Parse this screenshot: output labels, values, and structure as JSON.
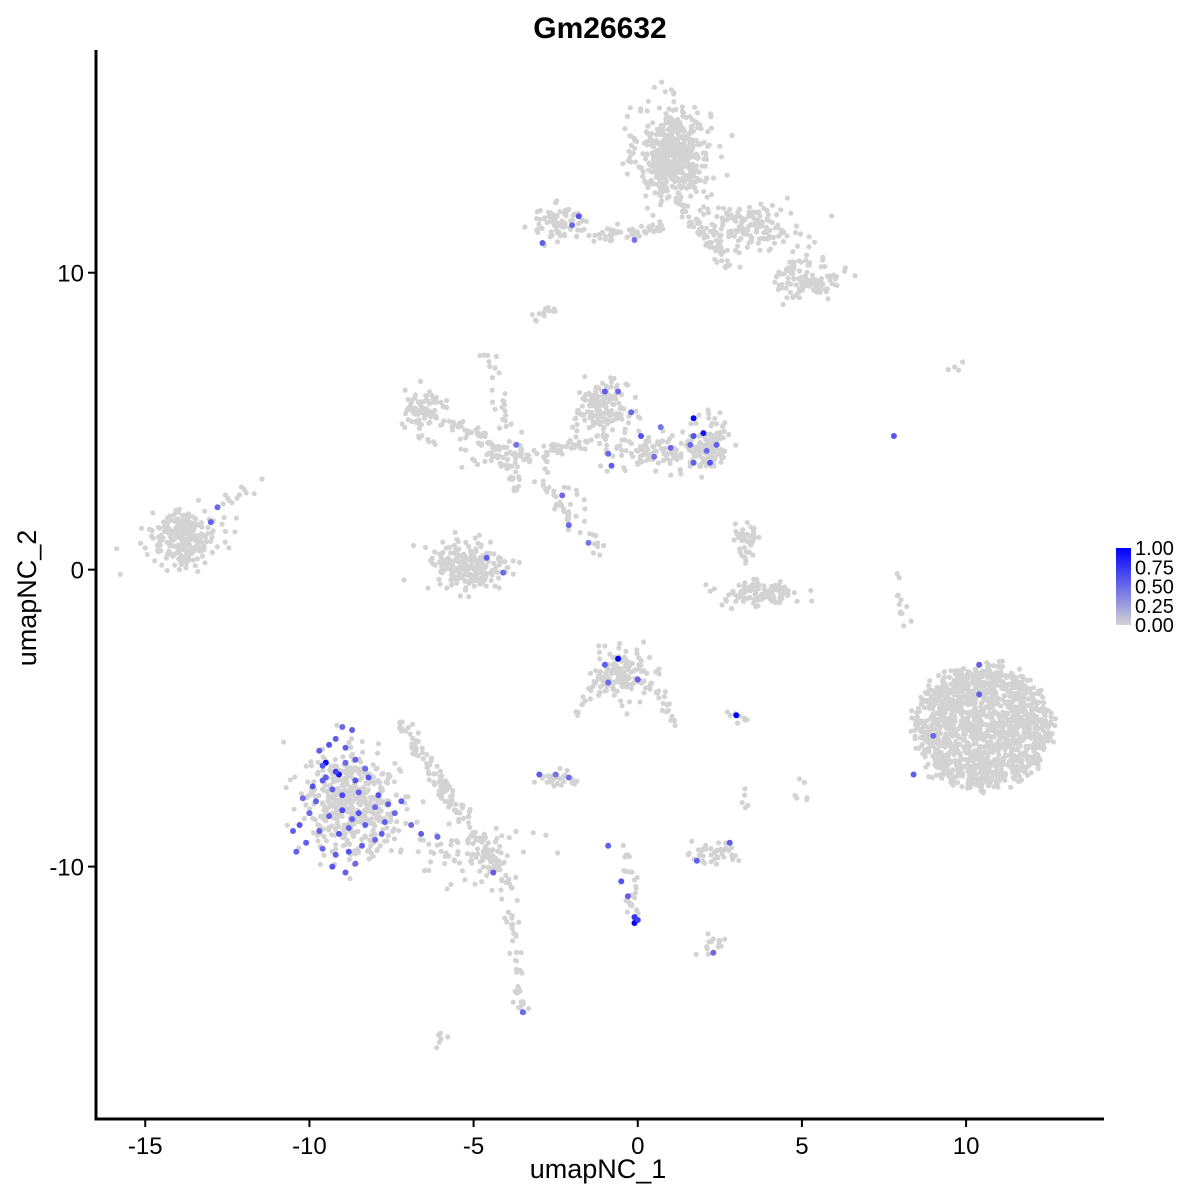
{
  "chart_data": {
    "type": "scatter",
    "title": "Gm26632",
    "xlabel": "umapNC_1",
    "ylabel": "umapNC_2",
    "xlim": [
      -16.5,
      14.2
    ],
    "ylim": [
      -18.5,
      17.5
    ],
    "xticks": [
      -15,
      -10,
      -5,
      0,
      5,
      10
    ],
    "yticks": [
      -10,
      0,
      10
    ],
    "xtick_labels": [
      "-15",
      "-10",
      "-5",
      "0",
      "5",
      "10"
    ],
    "ytick_labels": [
      "-10",
      "0",
      "10"
    ],
    "color_scale": {
      "low": "#d3d3d3",
      "high": "#0000ff",
      "range": [
        0,
        1
      ],
      "ticks": [
        "1.00",
        "0.75",
        "0.50",
        "0.25",
        "0.00"
      ],
      "tick_values": [
        1.0,
        0.75,
        0.5,
        0.25,
        0.0
      ],
      "legend_position": "right"
    },
    "clusters": [
      {
        "center": [
          1.1,
          14.0
        ],
        "sd": [
          0.55,
          0.8
        ],
        "n": 520,
        "shape": "ellipse"
      },
      {
        "center": [
          3.3,
          11.5
        ],
        "sd": [
          0.9,
          0.4
        ],
        "n": 160,
        "shape": "ellipse"
      },
      {
        "center": [
          5.2,
          9.8
        ],
        "sd": [
          0.5,
          0.35
        ],
        "n": 110,
        "shape": "ellipse"
      },
      {
        "center": [
          -2.4,
          11.7
        ],
        "sd": [
          0.45,
          0.28
        ],
        "n": 80,
        "shape": "ellipse"
      },
      {
        "center": [
          -0.8,
          11.3
        ],
        "sd": [
          0.5,
          0.12
        ],
        "n": 30,
        "shape": "ellipse"
      },
      {
        "center": [
          -1.1,
          5.4
        ],
        "sd": [
          0.4,
          0.45
        ],
        "n": 160,
        "shape": "ellipse"
      },
      {
        "center": [
          0.6,
          4.0
        ],
        "sd": [
          0.7,
          0.3
        ],
        "n": 110,
        "shape": "ellipse"
      },
      {
        "center": [
          2.2,
          4.2
        ],
        "sd": [
          0.3,
          0.45
        ],
        "n": 110,
        "shape": "ellipse"
      },
      {
        "center": [
          -6.5,
          5.4
        ],
        "sd": [
          0.35,
          0.3
        ],
        "n": 70,
        "shape": "ellipse"
      },
      {
        "center": [
          -4.0,
          3.8
        ],
        "sd": [
          0.7,
          0.25
        ],
        "n": 60,
        "shape": "ellipse"
      },
      {
        "center": [
          -13.8,
          1.1
        ],
        "sd": [
          0.5,
          0.45
        ],
        "n": 230,
        "shape": "ellipse"
      },
      {
        "center": [
          -5.2,
          0.1
        ],
        "sd": [
          0.6,
          0.45
        ],
        "n": 220,
        "shape": "ellipse"
      },
      {
        "center": [
          3.3,
          0.9
        ],
        "sd": [
          0.25,
          0.4
        ],
        "n": 40,
        "shape": "ellipse"
      },
      {
        "center": [
          3.7,
          -0.8
        ],
        "sd": [
          0.6,
          0.22
        ],
        "n": 100,
        "shape": "ellipse"
      },
      {
        "center": [
          10.5,
          -5.3
        ],
        "sd": [
          1.0,
          1.0
        ],
        "n": 1400,
        "shape": "disc",
        "radius": [
          2.1,
          2.05
        ]
      },
      {
        "center": [
          -0.5,
          -3.5
        ],
        "sd": [
          0.45,
          0.4
        ],
        "n": 140,
        "shape": "ellipse"
      },
      {
        "center": [
          -8.7,
          -7.9
        ],
        "sd": [
          0.7,
          0.85
        ],
        "n": 450,
        "shape": "ellipse"
      },
      {
        "center": [
          -5.0,
          -9.6
        ],
        "sd": [
          0.9,
          0.5
        ],
        "n": 90,
        "shape": "ellipse"
      },
      {
        "center": [
          -2.4,
          -7.0
        ],
        "sd": [
          0.3,
          0.18
        ],
        "n": 30,
        "shape": "ellipse"
      },
      {
        "center": [
          2.4,
          -9.6
        ],
        "sd": [
          0.4,
          0.18
        ],
        "n": 40,
        "shape": "ellipse"
      },
      {
        "center": [
          2.3,
          -12.6
        ],
        "sd": [
          0.2,
          0.15
        ],
        "n": 14,
        "shape": "ellipse"
      }
    ],
    "streams": [
      {
        "from": [
          -0.3,
          11.2
        ],
        "to": [
          0.8,
          11.6
        ],
        "n": 30
      },
      {
        "from": [
          1.2,
          12.5
        ],
        "to": [
          2.8,
          10.2
        ],
        "n": 40
      },
      {
        "from": [
          -3.2,
          8.3
        ],
        "to": [
          -2.6,
          8.9
        ],
        "n": 12
      },
      {
        "from": [
          -4.5,
          7.5
        ],
        "to": [
          -3.6,
          2.5
        ],
        "n": 40
      },
      {
        "from": [
          -5.8,
          5.0
        ],
        "to": [
          -4.2,
          4.1
        ],
        "n": 40
      },
      {
        "from": [
          -3.0,
          3.9
        ],
        "to": [
          -1.0,
          4.5
        ],
        "n": 40
      },
      {
        "from": [
          -3.0,
          3.2
        ],
        "to": [
          -1.6,
          1.0
        ],
        "n": 25
      },
      {
        "from": [
          -2.2,
          3.0
        ],
        "to": [
          -1.2,
          0.6
        ],
        "n": 20
      },
      {
        "from": [
          -12.6,
          2.3
        ],
        "to": [
          -11.4,
          3.0
        ],
        "n": 12
      },
      {
        "from": [
          -7.0,
          5.5
        ],
        "to": [
          -6.2,
          4.2
        ],
        "n": 15
      },
      {
        "from": [
          -7.2,
          -5.2
        ],
        "to": [
          -4.2,
          -10.2
        ],
        "n": 130
      },
      {
        "from": [
          -4.0,
          -10.4
        ],
        "to": [
          -3.5,
          -15.0
        ],
        "n": 50
      },
      {
        "from": [
          -2.0,
          -5.0
        ],
        "to": [
          -0.8,
          -3.5
        ],
        "n": 20
      },
      {
        "from": [
          0.3,
          -3.8
        ],
        "to": [
          1.2,
          -5.2
        ],
        "n": 20
      },
      {
        "from": [
          -0.4,
          -9.3
        ],
        "to": [
          -0.1,
          -12.0
        ],
        "n": 25
      },
      {
        "from": [
          8.0,
          -0.1
        ],
        "to": [
          8.1,
          -1.8
        ],
        "n": 12
      },
      {
        "from": [
          2.9,
          -5.0
        ],
        "to": [
          3.3,
          -5.0
        ],
        "n": 8
      },
      {
        "from": [
          4.9,
          -7.0
        ],
        "to": [
          5.0,
          -7.8
        ],
        "n": 6
      },
      {
        "from": [
          3.2,
          -7.2
        ],
        "to": [
          3.3,
          -8.4
        ],
        "n": 5
      },
      {
        "from": [
          -6.1,
          -16.0
        ],
        "to": [
          -5.9,
          -15.8
        ],
        "n": 6
      },
      {
        "from": [
          9.3,
          6.7
        ],
        "to": [
          9.8,
          6.8
        ],
        "n": 4
      }
    ],
    "expressing_points": [
      [
        -12.8,
        2.1,
        0.5
      ],
      [
        -13.0,
        1.6,
        0.55
      ],
      [
        -2.9,
        11.0,
        0.55
      ],
      [
        -1.8,
        11.9,
        0.6
      ],
      [
        -2.0,
        11.6,
        0.5
      ],
      [
        -0.1,
        11.1,
        0.45
      ],
      [
        -1.0,
        6.0,
        0.55
      ],
      [
        -0.6,
        6.0,
        0.5
      ],
      [
        -0.2,
        5.3,
        0.5
      ],
      [
        0.1,
        4.5,
        0.6
      ],
      [
        0.7,
        4.8,
        0.45
      ],
      [
        -0.9,
        3.9,
        0.5
      ],
      [
        1.7,
        5.1,
        1.0
      ],
      [
        2.0,
        4.6,
        0.9
      ],
      [
        1.7,
        4.5,
        0.6
      ],
      [
        2.4,
        4.2,
        0.55
      ],
      [
        1.6,
        4.2,
        0.5
      ],
      [
        1.7,
        3.6,
        0.55
      ],
      [
        2.2,
        3.6,
        0.6
      ],
      [
        2.1,
        4.0,
        0.5
      ],
      [
        1.0,
        4.1,
        0.5
      ],
      [
        0.5,
        3.8,
        0.45
      ],
      [
        -0.8,
        3.5,
        0.55
      ],
      [
        7.8,
        4.5,
        0.6
      ],
      [
        -3.7,
        4.2,
        0.45
      ],
      [
        -2.3,
        2.5,
        0.5
      ],
      [
        -2.1,
        1.5,
        0.5
      ],
      [
        -1.5,
        0.9,
        0.45
      ],
      [
        -4.6,
        0.4,
        0.55
      ],
      [
        -4.1,
        -0.1,
        0.5
      ],
      [
        -0.6,
        -3.0,
        1.0
      ],
      [
        -1.0,
        -3.2,
        0.55
      ],
      [
        -0.9,
        -3.8,
        0.5
      ],
      [
        0.0,
        -3.7,
        0.55
      ],
      [
        3.0,
        -4.9,
        1.0
      ],
      [
        10.4,
        -3.2,
        0.55
      ],
      [
        10.4,
        -4.2,
        0.55
      ],
      [
        9.0,
        -5.6,
        0.5
      ],
      [
        8.4,
        -6.9,
        0.55
      ],
      [
        -3.0,
        -6.9,
        0.55
      ],
      [
        -2.1,
        -7.0,
        0.5
      ],
      [
        -2.5,
        -6.9,
        0.45
      ],
      [
        -9.5,
        -6.5,
        1.0
      ],
      [
        -9.1,
        -6.9,
        0.9
      ],
      [
        -9.2,
        -6.8,
        0.7
      ],
      [
        -9.4,
        -5.9,
        0.6
      ],
      [
        -9.6,
        -6.6,
        0.6
      ],
      [
        -8.9,
        -6.0,
        0.55
      ],
      [
        -8.7,
        -5.4,
        0.55
      ],
      [
        -9.0,
        -5.3,
        0.5
      ],
      [
        -8.6,
        -6.4,
        0.55
      ],
      [
        -8.3,
        -6.7,
        0.5
      ],
      [
        -8.6,
        -7.1,
        0.6
      ],
      [
        -9.3,
        -7.4,
        0.55
      ],
      [
        -9.0,
        -7.6,
        0.65
      ],
      [
        -8.5,
        -7.5,
        0.55
      ],
      [
        -8.2,
        -7.0,
        0.6
      ],
      [
        -9.8,
        -7.8,
        0.55
      ],
      [
        -10.0,
        -8.2,
        0.5
      ],
      [
        -10.3,
        -8.6,
        0.6
      ],
      [
        -9.7,
        -8.8,
        0.55
      ],
      [
        -9.4,
        -8.3,
        0.55
      ],
      [
        -9.1,
        -8.9,
        0.6
      ],
      [
        -8.8,
        -8.7,
        0.55
      ],
      [
        -8.5,
        -8.2,
        0.6
      ],
      [
        -8.3,
        -8.6,
        0.55
      ],
      [
        -8.0,
        -8.0,
        0.5
      ],
      [
        -7.7,
        -8.5,
        0.55
      ],
      [
        -7.9,
        -7.6,
        0.6
      ],
      [
        -7.6,
        -7.9,
        0.55
      ],
      [
        -8.0,
        -9.1,
        0.5
      ],
      [
        -8.4,
        -9.3,
        0.55
      ],
      [
        -8.8,
        -9.5,
        0.6
      ],
      [
        -9.2,
        -9.6,
        0.55
      ],
      [
        -9.6,
        -9.4,
        0.5
      ],
      [
        -10.1,
        -9.2,
        0.55
      ],
      [
        -10.4,
        -9.5,
        0.55
      ],
      [
        -9.3,
        -10.0,
        0.6
      ],
      [
        -8.9,
        -10.2,
        0.55
      ],
      [
        -8.6,
        -9.9,
        0.5
      ],
      [
        -10.5,
        -8.8,
        0.55
      ],
      [
        -10.2,
        -7.7,
        0.5
      ],
      [
        -9.9,
        -7.3,
        0.6
      ],
      [
        -9.6,
        -7.1,
        0.55
      ],
      [
        -9.0,
        -8.1,
        0.65
      ],
      [
        -8.7,
        -8.4,
        0.55
      ],
      [
        -7.8,
        -8.9,
        0.55
      ],
      [
        -7.4,
        -8.2,
        0.5
      ],
      [
        -7.2,
        -7.8,
        0.55
      ],
      [
        -6.9,
        -8.6,
        0.5
      ],
      [
        -6.6,
        -8.9,
        0.55
      ],
      [
        -6.1,
        -9.0,
        0.5
      ],
      [
        -9.7,
        -6.1,
        0.55
      ],
      [
        -9.2,
        -5.7,
        0.55
      ],
      [
        -8.9,
        -6.5,
        0.5
      ],
      [
        -9.5,
        -7.0,
        0.55
      ],
      [
        -4.4,
        -10.2,
        0.55
      ],
      [
        -3.5,
        -14.9,
        0.5
      ],
      [
        -0.9,
        -9.3,
        0.55
      ],
      [
        -0.5,
        -10.5,
        0.6
      ],
      [
        -0.3,
        -11.0,
        0.55
      ],
      [
        -0.1,
        -11.7,
        0.75
      ],
      [
        -0.1,
        -11.9,
        1.0
      ],
      [
        0.0,
        -11.8,
        0.7
      ],
      [
        2.8,
        -9.2,
        0.55
      ],
      [
        1.8,
        -9.8,
        0.55
      ],
      [
        2.3,
        -12.9,
        0.5
      ]
    ]
  }
}
